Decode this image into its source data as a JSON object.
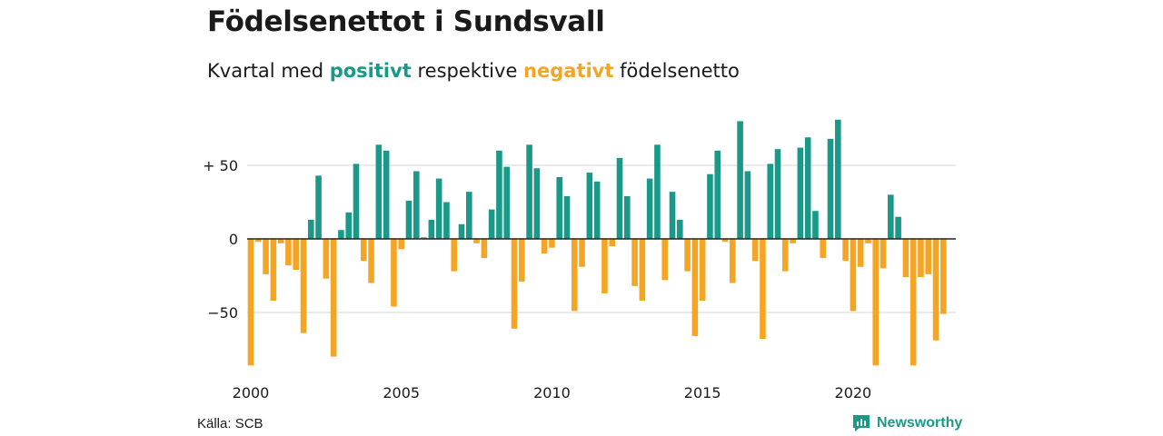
{
  "header": {
    "title": "Födelsenettot i Sundsvall",
    "subtitle_pre": "Kvartal med ",
    "subtitle_pos": "positivt",
    "subtitle_mid": " respektive ",
    "subtitle_neg": "negativt",
    "subtitle_post": " födelsenetto"
  },
  "footer": {
    "source": "Källa: SCB",
    "brand": "Newsworthy",
    "brand_icon": "bar-chart-speech-bubble-icon"
  },
  "colors": {
    "positive": "#1a9988",
    "negative": "#f5a524",
    "grid": "#dddddd",
    "axis": "#222222"
  },
  "chart_data": {
    "type": "bar",
    "x_start": "2000 Q1",
    "xticks": [
      "2000",
      "2005",
      "2010",
      "2015",
      "2020"
    ],
    "yticks": [
      50,
      0,
      -50
    ],
    "ytick_labels": [
      "+ 50",
      "0",
      "−50"
    ],
    "ylim": [
      -92,
      86
    ],
    "grid": true,
    "values": [
      -86,
      -2,
      -24,
      -42,
      -3,
      -18,
      -21,
      -64,
      13,
      43,
      -27,
      -80,
      6,
      18,
      51,
      -15,
      -30,
      64,
      60,
      -46,
      -7,
      26,
      46,
      1,
      13,
      41,
      25,
      -22,
      10,
      32,
      -3,
      -13,
      20,
      60,
      49,
      -61,
      -29,
      64,
      48,
      -10,
      -6,
      42,
      29,
      -49,
      -19,
      45,
      39,
      -37,
      -5,
      55,
      29,
      -32,
      -42,
      41,
      64,
      -28,
      32,
      13,
      -22,
      -66,
      -42,
      44,
      60,
      -2,
      -30,
      80,
      46,
      -15,
      -68,
      51,
      61,
      -22,
      -3,
      62,
      69,
      19,
      -13,
      68,
      81,
      -15,
      -49,
      -19,
      -3,
      -86,
      -20,
      30,
      15,
      -26,
      -86,
      -26,
      -24,
      -69,
      -51
    ]
  }
}
